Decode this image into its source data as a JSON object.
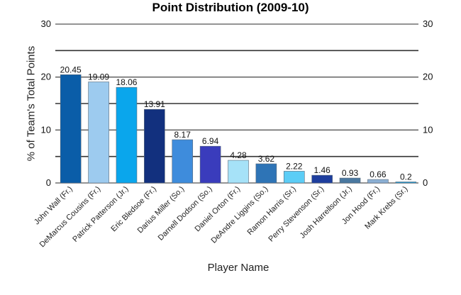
{
  "chart_data": {
    "type": "bar",
    "title": "Point Distribution (2009-10)",
    "xlabel": "Player Name",
    "ylabel": "% of Team's Total Points",
    "ylim": [
      0,
      30
    ],
    "yticks": [
      0,
      10,
      20,
      30
    ],
    "grid": true,
    "legend": "none",
    "categories": [
      "John Wall (Fr.)",
      "DeMarcus Cousins (Fr.)",
      "Patrick Patterson (Jr.)",
      "Eric Bledsoe (Fr.)",
      "Darius Miller (So.)",
      "Darnell Dodson (So.)",
      "Daniel Orton (Fr.)",
      "DeAndre Liggins (So.)",
      "Ramon Harris (Sr.)",
      "Perry Stevenson (Sr.)",
      "Josh Harrellson (Jr.)",
      "Jon Hood (Fr.)",
      "Mark Krebs (Sr.)"
    ],
    "values": [
      20.45,
      19.09,
      18.06,
      13.91,
      8.17,
      6.94,
      4.28,
      3.62,
      2.22,
      1.46,
      0.93,
      0.66,
      0.2
    ],
    "value_labels": [
      "20.45",
      "19.09",
      "18.06",
      "13.91",
      "8.17",
      "6.94",
      "4.28",
      "3.62",
      "2.22",
      "1.46",
      "0.93",
      "0.66",
      "0.2"
    ],
    "colors": [
      "#0a5da8",
      "#9dcbef",
      "#0aa6ec",
      "#12307e",
      "#3e8cdc",
      "#3a3cbc",
      "#a6e2f8",
      "#2e74b6",
      "#5ccdf6",
      "#1e3e9e",
      "#4a78a0",
      "#8cb0d4",
      "#1ca2de"
    ]
  }
}
